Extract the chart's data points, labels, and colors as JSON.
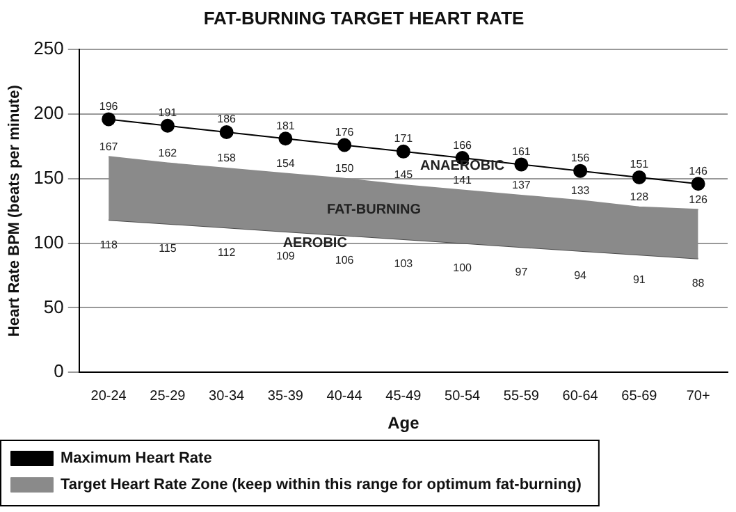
{
  "chart_data": {
    "type": "line",
    "title": "FAT-BURNING TARGET HEART RATE",
    "xlabel": "Age",
    "ylabel": "Heart Rate BPM (beats per minute)",
    "categories": [
      "20-24",
      "25-29",
      "30-34",
      "35-39",
      "40-44",
      "45-49",
      "50-54",
      "55-59",
      "60-64",
      "65-69",
      "70+"
    ],
    "series": [
      {
        "name": "Maximum Heart Rate",
        "color": "#000000",
        "marker": "circle",
        "values": [
          196,
          191,
          186,
          181,
          176,
          171,
          166,
          161,
          156,
          151,
          146
        ]
      },
      {
        "name": "Target Heart Rate Zone (keep within this range for optimum fat-burning)",
        "type": "area",
        "color": "#8a8a8a",
        "values": [
          167,
          162,
          158,
          154,
          150,
          145,
          141,
          137,
          133,
          128,
          126
        ]
      },
      {
        "type": "line",
        "color": "#4d4d4d",
        "marker": "none",
        "values": [
          118,
          115,
          112,
          109,
          106,
          103,
          100,
          97,
          94,
          91,
          88
        ]
      }
    ],
    "ylim": [
      0,
      250
    ],
    "yticks": [
      0,
      50,
      100,
      150,
      200,
      250
    ],
    "grid": "y",
    "legend": "bottom left",
    "data_labels": true,
    "annotations": [
      {
        "text": "ANAEROBIC",
        "x": "50-54",
        "y": 160
      },
      "FAT-BURNING",
      "AEROBIC"
    ]
  }
}
